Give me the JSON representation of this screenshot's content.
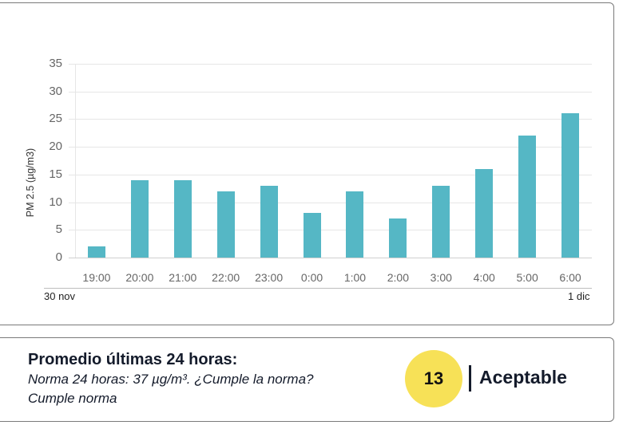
{
  "chart_data": {
    "type": "bar",
    "title": "",
    "xlabel": "",
    "ylabel": "PM 2.5 (µg/m3)",
    "ylim": [
      0,
      35
    ],
    "yticks": [
      "0",
      "5",
      "10",
      "15",
      "20",
      "25",
      "30",
      "35"
    ],
    "grid": true,
    "categories": [
      "19:00",
      "20:00",
      "21:00",
      "22:00",
      "23:00",
      "0:00",
      "1:00",
      "2:00",
      "3:00",
      "4:00",
      "5:00",
      "6:00"
    ],
    "values": [
      2,
      14,
      14,
      12,
      13,
      8,
      12,
      7,
      13,
      16,
      22,
      26
    ],
    "date_labels": {
      "start": "30 nov",
      "end": "1 dic"
    },
    "bar_color": "#55b7c5"
  },
  "summary": {
    "title": "Promedio últimas 24 horas:",
    "norm_text": "Norma 24 horas: 37 µg/m³. ¿Cumple la norma?",
    "compliance": "Cumple norma",
    "value": "13",
    "status": "Aceptable",
    "badge_color": "#f7e157"
  }
}
